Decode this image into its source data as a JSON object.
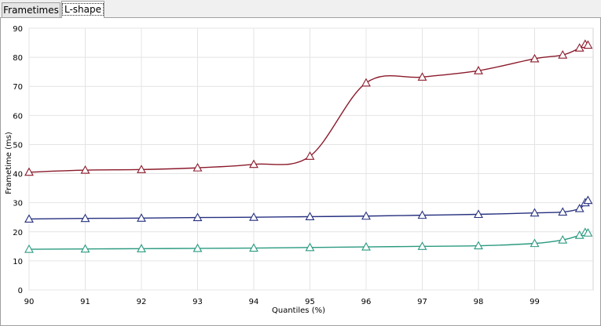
{
  "tabs": [
    {
      "label": "Frametimes",
      "active": false
    },
    {
      "label": "L-shape",
      "active": true
    }
  ],
  "chart_data": {
    "type": "line",
    "title": "",
    "xlabel": "Quantiles (%)",
    "ylabel": "Frametime (ms)",
    "xlim": [
      90,
      100
    ],
    "ylim": [
      0,
      90
    ],
    "xticks": [
      "90",
      "91",
      "92",
      "93",
      "94",
      "95",
      "96",
      "97",
      "98",
      "99"
    ],
    "yticks": [
      "0",
      "10",
      "20",
      "30",
      "40",
      "50",
      "60",
      "70",
      "80",
      "90"
    ],
    "grid": true,
    "legend": "none",
    "marker": "triangle",
    "series": [
      {
        "color": "#8b1a2b",
        "x": [
          90,
          91,
          92,
          93,
          94,
          95,
          96,
          97,
          98,
          99,
          99.5,
          99.8,
          99.9,
          99.95
        ],
        "y": [
          40.5,
          41.2,
          41.4,
          42.0,
          43.2,
          46.0,
          71.2,
          73.2,
          75.4,
          79.5,
          80.8,
          83.2,
          84.5,
          84.2
        ]
      },
      {
        "color": "#26307f",
        "x": [
          90,
          91,
          92,
          93,
          94,
          95,
          96,
          97,
          98,
          99,
          99.5,
          99.8,
          99.9,
          99.95
        ],
        "y": [
          24.4,
          24.6,
          24.7,
          24.9,
          25.0,
          25.2,
          25.4,
          25.7,
          26.0,
          26.5,
          26.8,
          28.0,
          30.0,
          30.8
        ]
      },
      {
        "color": "#2a9a80",
        "x": [
          90,
          91,
          92,
          93,
          94,
          95,
          96,
          97,
          98,
          99,
          99.5,
          99.8,
          99.9,
          99.95
        ],
        "y": [
          14.0,
          14.1,
          14.2,
          14.3,
          14.4,
          14.6,
          14.8,
          15.0,
          15.2,
          16.0,
          17.2,
          18.8,
          19.8,
          19.6
        ]
      }
    ]
  }
}
